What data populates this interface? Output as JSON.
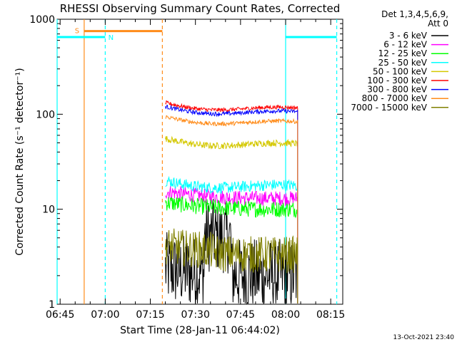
{
  "chart_data": {
    "type": "line",
    "title": "RHESSI Observing Summary Count Rates, Corrected",
    "xlabel": "Start Time (28-Jan-11 06:44:02)",
    "ylabel": "Corrected Count Rate (s⁻¹ detector⁻¹)",
    "yscale": "log",
    "ylim": [
      1,
      1000
    ],
    "xlim_minutes": [
      0,
      95
    ],
    "x_tick_labels": [
      "06:45",
      "07:00",
      "07:15",
      "07:30",
      "07:45",
      "08:00",
      "08:15"
    ],
    "x_tick_minutes": [
      1,
      16,
      31,
      46,
      61,
      76,
      91
    ],
    "y_tick_labels": [
      "1",
      "10",
      "100",
      "1000"
    ],
    "y_tick_values": [
      1,
      10,
      100,
      1000
    ],
    "legend_header": [
      "Det 1,3,4,5,6,9,",
      "Att 0"
    ],
    "footer": "13-Oct-2021 23:40",
    "series": [
      {
        "name": "3 - 6 keV",
        "color": "#000000",
        "start_min": 36,
        "end_min": 80,
        "base": 2.0
      },
      {
        "name": "6 - 12 keV",
        "color": "#ff00ff",
        "start_min": 36,
        "end_min": 80,
        "base": 13
      },
      {
        "name": "12 - 25 keV",
        "color": "#00ff00",
        "start_min": 36,
        "end_min": 80,
        "base": 10
      },
      {
        "name": "25 - 50 keV",
        "color": "#00ffff",
        "start_min": 36,
        "end_min": 80,
        "base": 17
      },
      {
        "name": "50 - 100 keV",
        "color": "#d4c800",
        "start_min": 36,
        "end_min": 80,
        "base": 47
      },
      {
        "name": "100 - 300 keV",
        "color": "#ff0000",
        "start_min": 36,
        "end_min": 80,
        "base": 112
      },
      {
        "name": "300 - 800 keV",
        "color": "#0000ff",
        "start_min": 36,
        "end_min": 80,
        "base": 102
      },
      {
        "name": "800 - 7000 keV",
        "color": "#ff8c1a",
        "start_min": 36,
        "end_min": 80,
        "base": 80
      },
      {
        "name": "7000 - 15000 keV",
        "color": "#808000",
        "start_min": 36,
        "end_min": 80,
        "base": 3.5
      }
    ],
    "annotations": {
      "saa": {
        "label": "S",
        "color": "#ff8c1a",
        "start_min": 9,
        "end_min": 35,
        "level": 750
      },
      "night": [
        {
          "label": "N",
          "color": "#00ffff",
          "start_min": 0,
          "end_min": 16,
          "level": 650
        },
        {
          "label": "",
          "color": "#00ffff",
          "start_min": 76,
          "end_min": 93,
          "level": 650
        }
      ]
    }
  }
}
